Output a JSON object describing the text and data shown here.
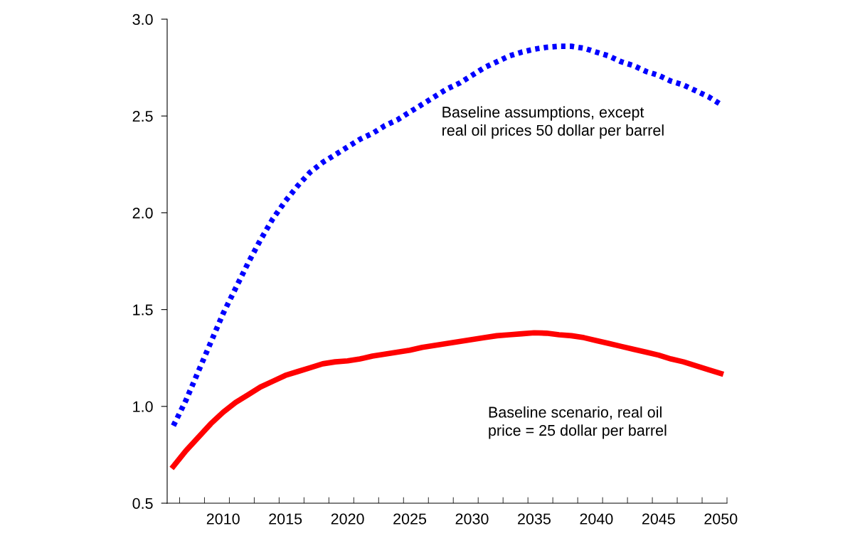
{
  "chart_data": {
    "type": "line",
    "x": [
      2006,
      2007,
      2008,
      2009,
      2010,
      2011,
      2012,
      2013,
      2014,
      2015,
      2016,
      2017,
      2018,
      2019,
      2020,
      2021,
      2022,
      2023,
      2024,
      2025,
      2026,
      2027,
      2028,
      2029,
      2030,
      2031,
      2032,
      2033,
      2034,
      2035,
      2036,
      2037,
      2038,
      2039,
      2040,
      2041,
      2042,
      2043,
      2044,
      2045,
      2046,
      2047,
      2048,
      2049,
      2050
    ],
    "series": [
      {
        "color": "#0000ff",
        "line_style": "dotted",
        "values": [
          0.9,
          1.03,
          1.18,
          1.33,
          1.48,
          1.61,
          1.74,
          1.86,
          1.97,
          2.06,
          2.14,
          2.21,
          2.26,
          2.3,
          2.34,
          2.38,
          2.41,
          2.45,
          2.48,
          2.52,
          2.56,
          2.6,
          2.64,
          2.67,
          2.71,
          2.75,
          2.78,
          2.81,
          2.83,
          2.845,
          2.855,
          2.86,
          2.86,
          2.85,
          2.83,
          2.81,
          2.78,
          2.76,
          2.73,
          2.71,
          2.68,
          2.66,
          2.63,
          2.6,
          2.56
        ]
      },
      {
        "color": "#ff0000",
        "line_style": "solid",
        "values": [
          0.69,
          0.77,
          0.84,
          0.91,
          0.97,
          1.02,
          1.06,
          1.1,
          1.13,
          1.16,
          1.18,
          1.2,
          1.22,
          1.23,
          1.235,
          1.245,
          1.26,
          1.27,
          1.28,
          1.29,
          1.305,
          1.315,
          1.325,
          1.335,
          1.345,
          1.355,
          1.365,
          1.37,
          1.375,
          1.38,
          1.378,
          1.37,
          1.365,
          1.355,
          1.34,
          1.325,
          1.31,
          1.295,
          1.28,
          1.265,
          1.245,
          1.23,
          1.21,
          1.19,
          1.17
        ]
      }
    ],
    "xlim": [
      2005.5,
      2050.5
    ],
    "xticks": [
      {
        "value": 2006.5,
        "label": null
      },
      {
        "value": 2008.5,
        "label": null
      },
      {
        "value": 2010,
        "label": "2010"
      },
      {
        "value": 2010.5,
        "label": null
      },
      {
        "value": 2012.5,
        "label": null
      },
      {
        "value": 2014.5,
        "label": null
      },
      {
        "value": 2015,
        "label": "2015"
      },
      {
        "value": 2016.5,
        "label": null
      },
      {
        "value": 2018.5,
        "label": null
      },
      {
        "value": 2020,
        "label": "2020"
      },
      {
        "value": 2020.5,
        "label": null
      },
      {
        "value": 2022.5,
        "label": null
      },
      {
        "value": 2024.5,
        "label": null
      },
      {
        "value": 2025,
        "label": "2025"
      },
      {
        "value": 2026.5,
        "label": null
      },
      {
        "value": 2028.5,
        "label": null
      },
      {
        "value": 2030,
        "label": "2030"
      },
      {
        "value": 2030.5,
        "label": null
      },
      {
        "value": 2032.5,
        "label": null
      },
      {
        "value": 2034.5,
        "label": null
      },
      {
        "value": 2035,
        "label": "2035"
      },
      {
        "value": 2036.5,
        "label": null
      },
      {
        "value": 2038.5,
        "label": null
      },
      {
        "value": 2040,
        "label": "2040"
      },
      {
        "value": 2040.5,
        "label": null
      },
      {
        "value": 2042.5,
        "label": null
      },
      {
        "value": 2044.5,
        "label": null
      },
      {
        "value": 2045,
        "label": "2045"
      },
      {
        "value": 2046.5,
        "label": null
      },
      {
        "value": 2048.5,
        "label": null
      },
      {
        "value": 2050,
        "label": "2050"
      },
      {
        "value": 2050.5,
        "label": null
      }
    ],
    "ylim": [
      0.5,
      3.0
    ],
    "yticks": [
      {
        "value": 0.5,
        "label": "0.5"
      },
      {
        "value": 1,
        "label": "1.0"
      },
      {
        "value": 1.5,
        "label": "1.5"
      },
      {
        "value": 2,
        "label": "2.0"
      },
      {
        "value": 2.5,
        "label": "2.5"
      },
      {
        "value": 3,
        "label": "3.0"
      }
    ],
    "annotations": [
      "Baseline assumptions, except\nreal oil prices 50 dollar per barrel",
      "Baseline scenario, real oil\nprice = 25 dollar per barrel"
    ],
    "grid": false,
    "legend": false,
    "marker": "none"
  }
}
